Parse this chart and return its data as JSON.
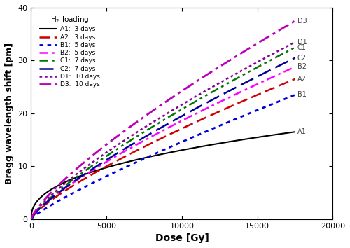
{
  "xlabel": "Dose [Gy]",
  "ylabel": "Bragg wavelength shift [pm]",
  "xlim": [
    0,
    20000
  ],
  "ylim": [
    0,
    40
  ],
  "xticks": [
    0,
    5000,
    10000,
    15000,
    20000
  ],
  "yticks": [
    0,
    10,
    20,
    30,
    40
  ],
  "legend_title": "H$_2$ loading",
  "series": [
    {
      "name": "A1",
      "label": "A1:  3 days",
      "color": "#000000",
      "ls_key": "solid",
      "linewidth": 1.5,
      "final_y": 16.5,
      "power": 0.42
    },
    {
      "name": "A2",
      "label": "A2:  3 days",
      "color": "#cc0000",
      "ls_key": "dashed",
      "linewidth": 1.8,
      "final_y": 26.5,
      "power": 0.78
    },
    {
      "name": "B1",
      "label": "B1:  5 days",
      "color": "#0000dd",
      "ls_key": "dotted",
      "linewidth": 2.0,
      "final_y": 23.5,
      "power": 0.85
    },
    {
      "name": "B2",
      "label": "B2:  5 days",
      "color": "#ff00ff",
      "ls_key": "dashdot",
      "linewidth": 1.8,
      "final_y": 28.8,
      "power": 0.78
    },
    {
      "name": "C1",
      "label": "C1:  7 days",
      "color": "#007700",
      "ls_key": "dashdotdot",
      "linewidth": 1.8,
      "final_y": 32.5,
      "power": 0.8
    },
    {
      "name": "C2",
      "label": "C2:  7 days",
      "color": "#000099",
      "ls_key": "longdash",
      "linewidth": 1.8,
      "final_y": 30.5,
      "power": 0.8
    },
    {
      "name": "D1",
      "label": "D1:  10 days",
      "color": "#880099",
      "ls_key": "densedot",
      "linewidth": 1.8,
      "final_y": 33.5,
      "power": 0.78
    },
    {
      "name": "D3",
      "label": "D3:  10 days",
      "color": "#bb00bb",
      "ls_key": "dashdot2",
      "linewidth": 2.0,
      "final_y": 37.5,
      "power": 0.78
    }
  ],
  "figwidth": 5.0,
  "figheight": 3.54,
  "dpi": 100
}
